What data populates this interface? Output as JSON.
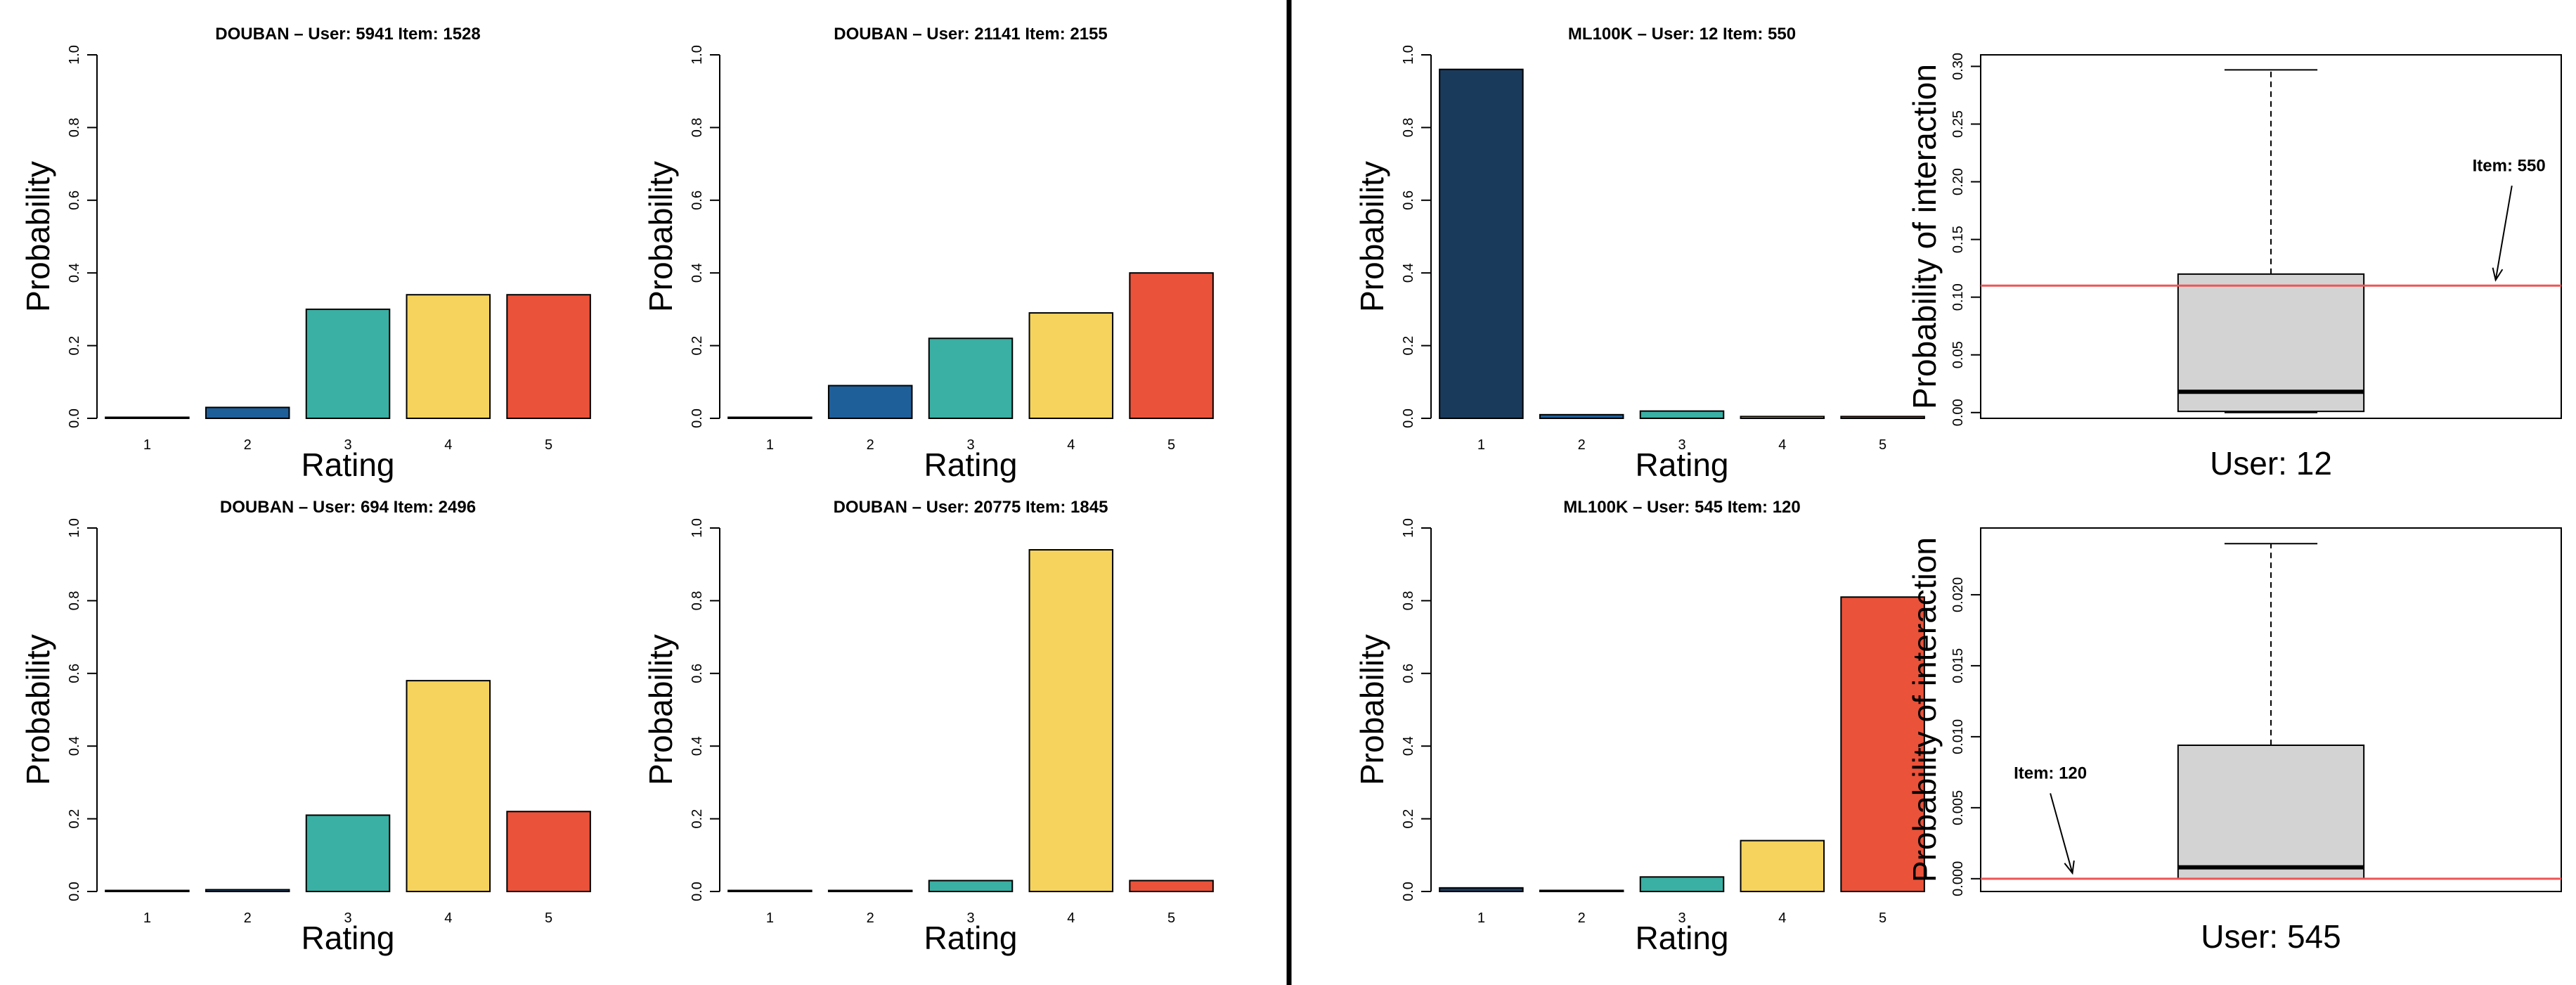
{
  "chart_data": [
    {
      "type": "bar",
      "title": "DOUBAN – User: 5941 Item: 1528",
      "xlabel": "Rating",
      "ylabel": "Probability",
      "categories": [
        "1",
        "2",
        "3",
        "4",
        "5"
      ],
      "values": [
        0.0,
        0.03,
        0.3,
        0.34,
        0.34
      ],
      "ylim": [
        0,
        1
      ],
      "yticks": [
        "0.0",
        "0.2",
        "0.4",
        "0.6",
        "0.8",
        "1.0"
      ]
    },
    {
      "type": "bar",
      "title": "DOUBAN – User: 21141 Item: 2155",
      "xlabel": "Rating",
      "ylabel": "Probability",
      "categories": [
        "1",
        "2",
        "3",
        "4",
        "5"
      ],
      "values": [
        0.0,
        0.09,
        0.22,
        0.29,
        0.4
      ],
      "ylim": [
        0,
        1
      ],
      "yticks": [
        "0.0",
        "0.2",
        "0.4",
        "0.6",
        "0.8",
        "1.0"
      ]
    },
    {
      "type": "bar",
      "title": "DOUBAN – User: 694 Item: 2496",
      "xlabel": "Rating",
      "ylabel": "Probability",
      "categories": [
        "1",
        "2",
        "3",
        "4",
        "5"
      ],
      "values": [
        0.0,
        0.005,
        0.21,
        0.58,
        0.22
      ],
      "ylim": [
        0,
        1
      ],
      "yticks": [
        "0.0",
        "0.2",
        "0.4",
        "0.6",
        "0.8",
        "1.0"
      ]
    },
    {
      "type": "bar",
      "title": "DOUBAN – User: 20775 Item: 1845",
      "xlabel": "Rating",
      "ylabel": "Probability",
      "categories": [
        "1",
        "2",
        "3",
        "4",
        "5"
      ],
      "values": [
        0.0,
        0.0,
        0.03,
        0.94,
        0.03
      ],
      "ylim": [
        0,
        1
      ],
      "yticks": [
        "0.0",
        "0.2",
        "0.4",
        "0.6",
        "0.8",
        "1.0"
      ]
    },
    {
      "type": "bar",
      "title": "ML100K – User: 12 Item: 550",
      "xlabel": "Rating",
      "ylabel": "Probability",
      "categories": [
        "1",
        "2",
        "3",
        "4",
        "5"
      ],
      "values": [
        0.96,
        0.01,
        0.02,
        0.005,
        0.005
      ],
      "ylim": [
        0,
        1
      ],
      "yticks": [
        "0.0",
        "0.2",
        "0.4",
        "0.6",
        "0.8",
        "1.0"
      ]
    },
    {
      "type": "bar",
      "title": "ML100K – User: 545 Item: 120",
      "xlabel": "Rating",
      "ylabel": "Probability",
      "categories": [
        "1",
        "2",
        "3",
        "4",
        "5"
      ],
      "values": [
        0.01,
        0.003,
        0.04,
        0.14,
        0.81
      ],
      "ylim": [
        0,
        1
      ],
      "yticks": [
        "0.0",
        "0.2",
        "0.4",
        "0.6",
        "0.8",
        "1.0"
      ]
    },
    {
      "type": "box",
      "xlabel": "User: 12",
      "ylabel": "Probability of interaction",
      "ylim": [
        -0.005,
        0.31
      ],
      "yticks": [
        0.0,
        0.05,
        0.1,
        0.15,
        0.2,
        0.25,
        0.3
      ],
      "ytick_labels": [
        "0.00",
        "0.05",
        "0.10",
        "0.15",
        "0.20",
        "0.25",
        "0.30"
      ],
      "min": 0.0,
      "q1": 0.001,
      "median": 0.018,
      "q3": 0.12,
      "max": 0.297,
      "reference_line": 0.11,
      "annotation": "Item: 550",
      "annotation_side": "right"
    },
    {
      "type": "box",
      "xlabel": "User: 545",
      "ylabel": "Probability of interaction",
      "ylim": [
        -0.0009,
        0.0247
      ],
      "yticks": [
        0.0,
        0.005,
        0.01,
        0.015,
        0.02
      ],
      "ytick_labels": [
        "0.000",
        "0.005",
        "0.010",
        "0.015",
        "0.020"
      ],
      "min": 0.0,
      "q1": 0.0,
      "median": 0.0008,
      "q3": 0.0094,
      "max": 0.0236,
      "reference_line": 0.0,
      "annotation": "Item: 120",
      "annotation_side": "left"
    }
  ],
  "colors": {
    "rating_1": "#1a3a5c",
    "rating_2": "#1f5f99",
    "rating_3": "#3aafa3",
    "rating_4": "#f5d35c",
    "rating_5": "#ea5239",
    "box_fill": "#d3d3d3",
    "reference_line": "#ee5555"
  }
}
